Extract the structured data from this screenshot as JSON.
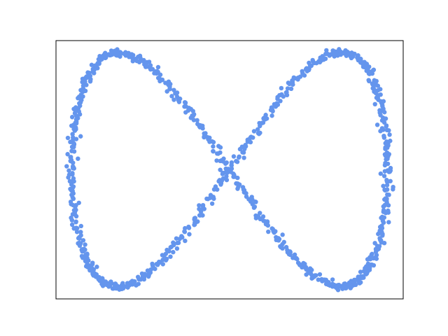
{
  "chart_data": {
    "type": "scatter",
    "title": "",
    "xlabel": "",
    "ylabel": "",
    "xlim": [
      -1.1,
      1.1
    ],
    "ylim": [
      -1.1,
      1.1
    ],
    "grid": false,
    "ticks_visible": false,
    "color": "#6495ED",
    "series": [
      {
        "curve": "lemniscate-sine",
        "x_of_t": "sin(t)",
        "y_of_t": "sin(2t)",
        "t_range": [
          0,
          6.283185
        ],
        "num_points": 1000,
        "noise_sd": 0.015,
        "marker": "circle",
        "color": "#6495ED"
      }
    ]
  }
}
